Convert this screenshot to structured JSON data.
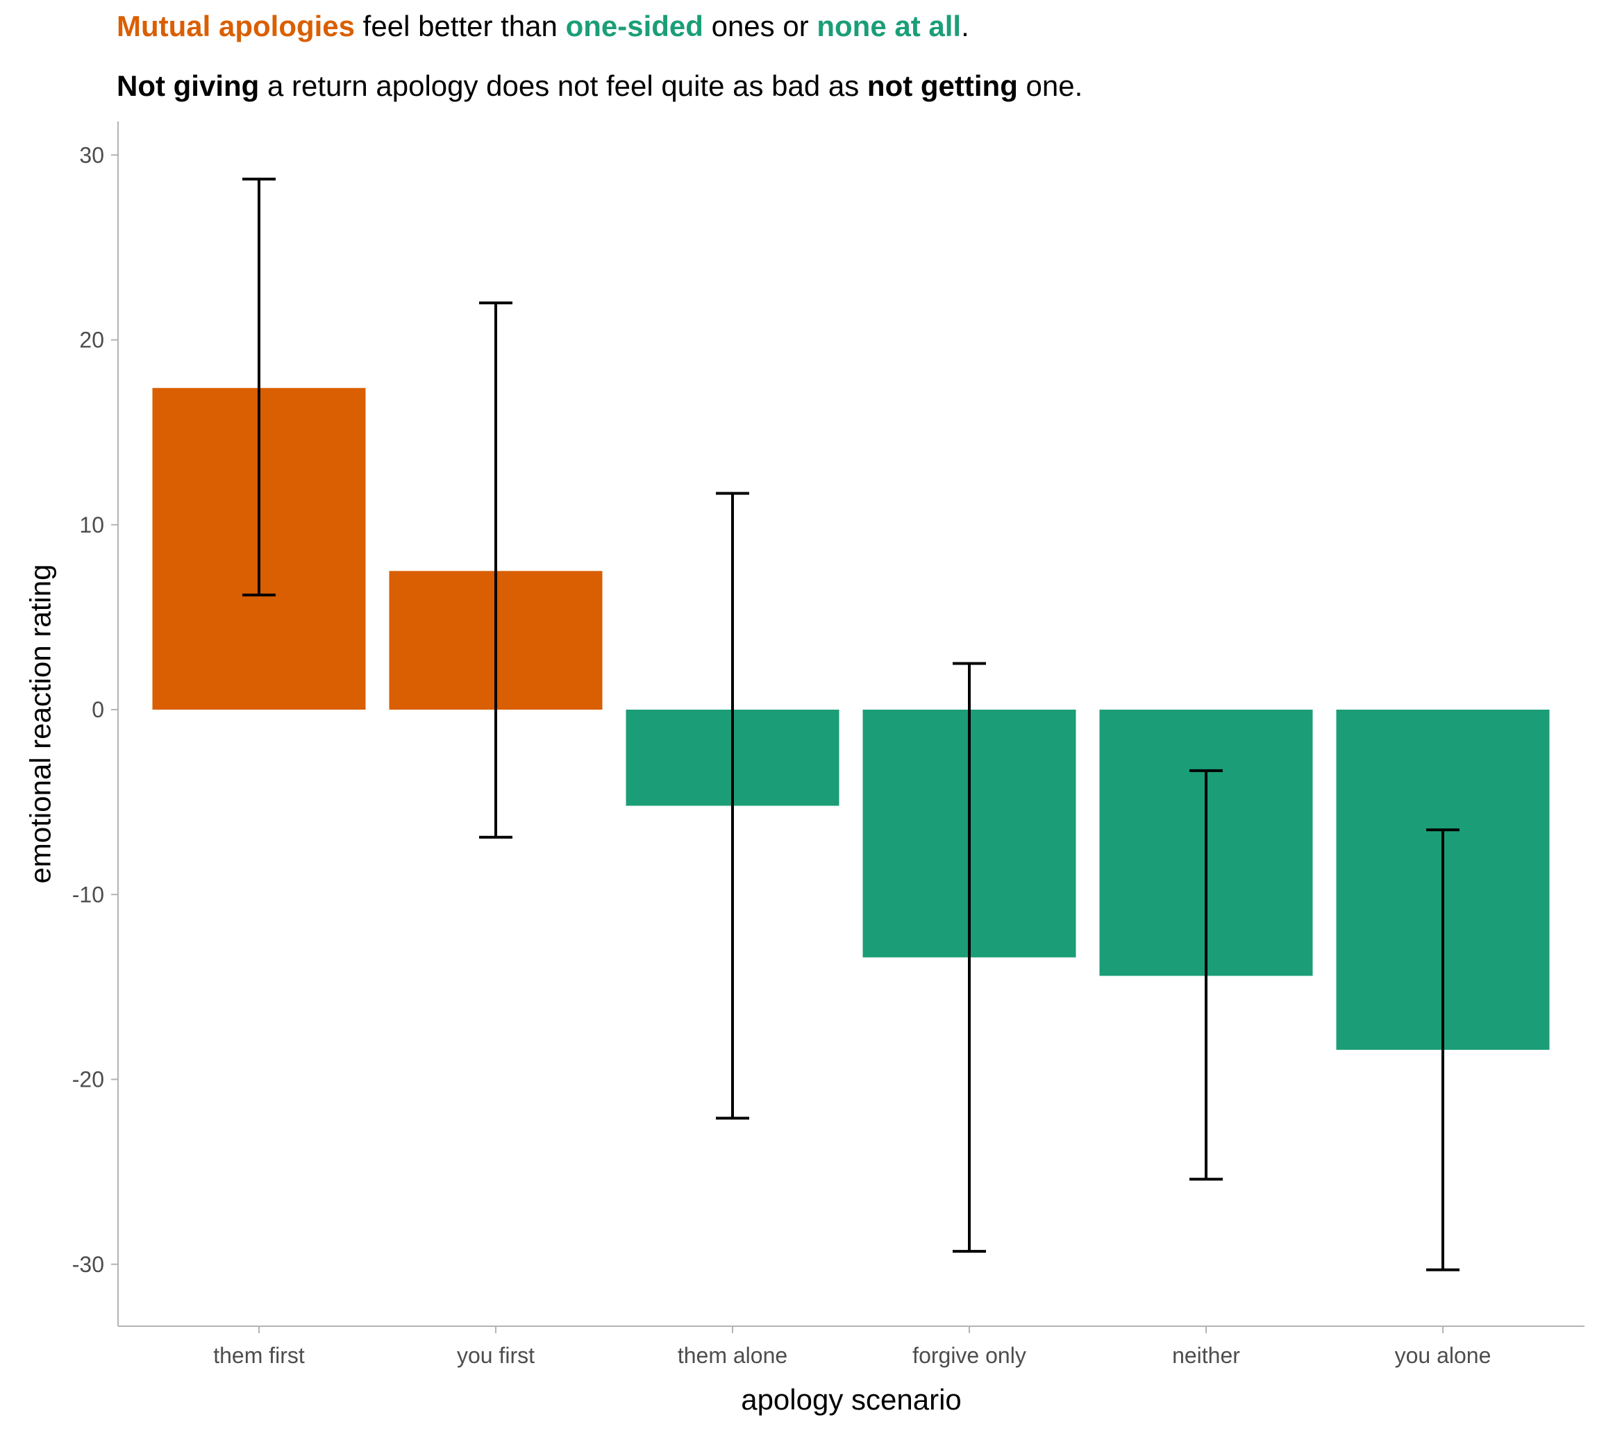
{
  "subtitle_line1": {
    "part1": "Mutual apologies",
    "part2": " feel better than ",
    "part3": "one-sided",
    "part4": " ones or ",
    "part5": "none at all",
    "part6": "."
  },
  "subtitle_line2": {
    "part1": "Not giving",
    "part2": " a return apology does not feel quite as bad as ",
    "part3": "not getting",
    "part4": " one."
  },
  "colors": {
    "mutual": "#d95f02",
    "one_sided": "#1b9e77"
  },
  "chart_data": {
    "type": "bar",
    "categories": [
      "them first",
      "you first",
      "them alone",
      "forgive only",
      "neither",
      "you alone"
    ],
    "values": [
      17.4,
      7.5,
      -5.2,
      -13.4,
      -14.4,
      -18.4
    ],
    "error_low": [
      6.2,
      -6.9,
      -22.1,
      -29.3,
      -25.4,
      -30.3
    ],
    "error_high": [
      28.7,
      22.0,
      11.7,
      2.5,
      -3.3,
      -6.5
    ],
    "groups": [
      "mutual",
      "mutual",
      "one_sided",
      "one_sided",
      "one_sided",
      "one_sided"
    ],
    "xlabel": "apology scenario",
    "ylabel": "emotional reaction rating",
    "ylim": [
      -33,
      31.5
    ],
    "yticks": [
      30,
      20,
      10,
      0,
      -10,
      -20,
      -30
    ],
    "ytick_labels": [
      "30",
      "20",
      "10",
      "0",
      "-10",
      "-20",
      "-30"
    ],
    "grid": false,
    "legend": "none"
  }
}
